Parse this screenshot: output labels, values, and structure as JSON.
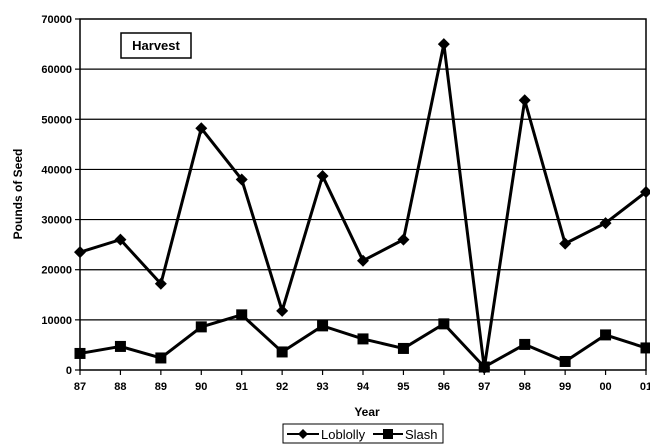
{
  "chart_data": {
    "type": "line",
    "title": "",
    "annotation": "Harvest",
    "xlabel": "Year",
    "ylabel": "Pounds of Seed",
    "categories": [
      "87",
      "88",
      "89",
      "90",
      "91",
      "92",
      "93",
      "94",
      "95",
      "96",
      "97",
      "98",
      "99",
      "00",
      "01"
    ],
    "ylim": [
      0,
      70000
    ],
    "yticks": [
      "0",
      "10000",
      "20000",
      "30000",
      "40000",
      "50000",
      "60000",
      "70000"
    ],
    "grid": "horizontal",
    "legend_position": "bottom",
    "series": [
      {
        "name": "Loblolly",
        "marker": "diamond",
        "color": "#000000",
        "values": [
          23500,
          26000,
          17200,
          48200,
          38000,
          11800,
          38700,
          21800,
          26000,
          65000,
          400,
          53800,
          25200,
          29300,
          35500
        ]
      },
      {
        "name": "Slash",
        "marker": "square",
        "color": "#000000",
        "values": [
          3300,
          4700,
          2400,
          8600,
          11000,
          3600,
          8800,
          6200,
          4300,
          9200,
          600,
          5100,
          1700,
          7000,
          4400
        ]
      }
    ]
  }
}
